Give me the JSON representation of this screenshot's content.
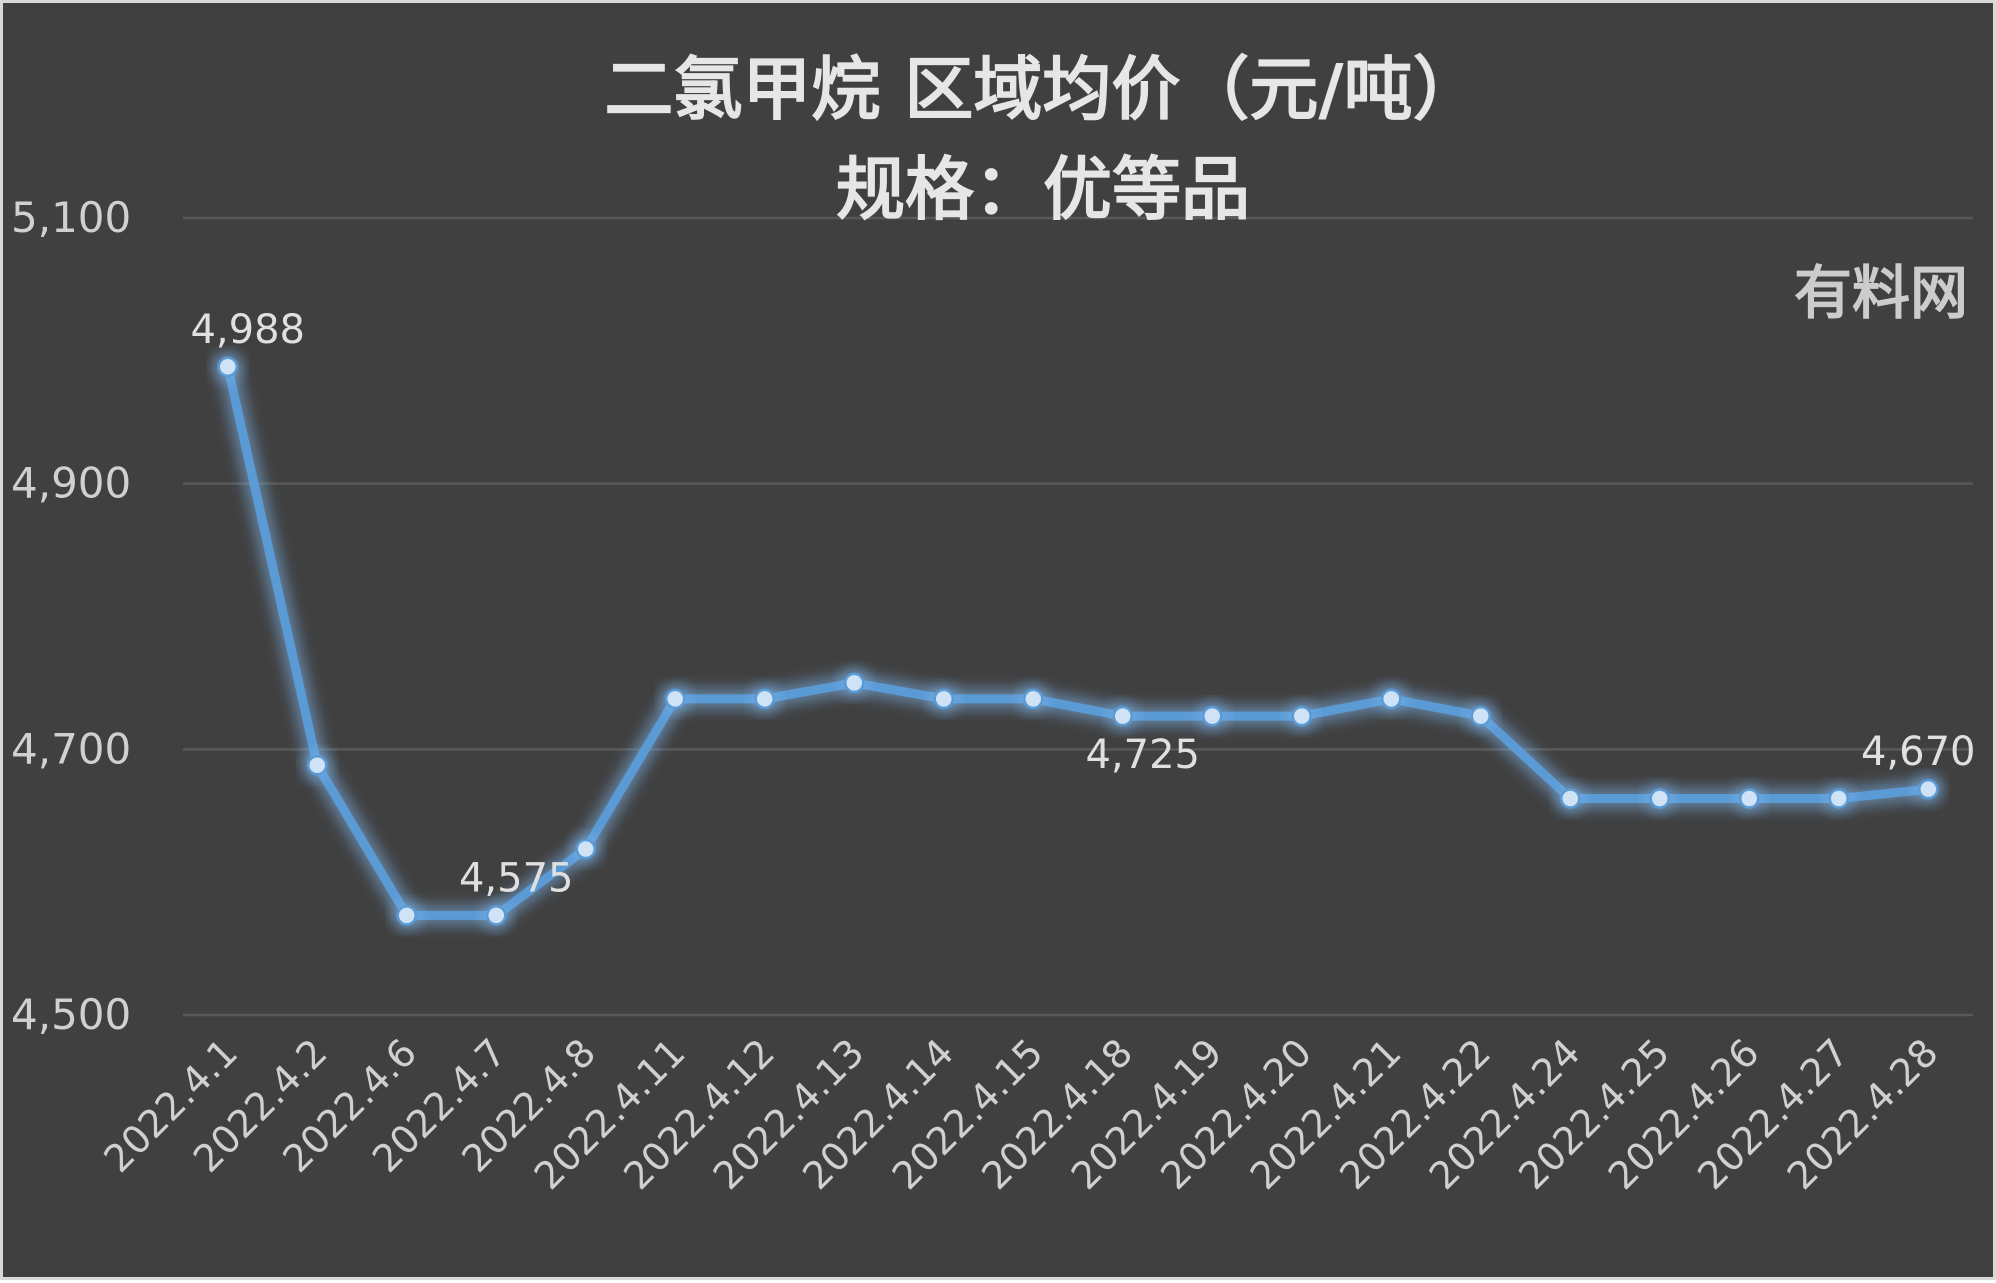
{
  "chart_data": {
    "type": "line",
    "title": "二氯甲烷  区域均价（元/吨）",
    "subtitle": "规格：优等品",
    "watermark": "有料网",
    "xlabel": "",
    "ylabel": "",
    "ylim": [
      4500,
      5100
    ],
    "yticks": [
      4500,
      4700,
      4900,
      5100
    ],
    "ytick_labels": [
      "4,500",
      "4,700",
      "4,900",
      "5,100"
    ],
    "categories": [
      "2022.4.1",
      "2022.4.2",
      "2022.4.6",
      "2022.4.7",
      "2022.4.8",
      "2022.4.11",
      "2022.4.12",
      "2022.4.13",
      "2022.4.14",
      "2022.4.15",
      "2022.4.18",
      "2022.4.19",
      "2022.4.20",
      "2022.4.21",
      "2022.4.22",
      "2022.4.24",
      "2022.4.25",
      "2022.4.26",
      "2022.4.27",
      "2022.4.28"
    ],
    "series": [
      {
        "values": [
          4988,
          4688,
          4575,
          4575,
          4625,
          4738,
          4738,
          4750,
          4738,
          4738,
          4725,
          4725,
          4725,
          4738,
          4725,
          4663,
          4663,
          4663,
          4663,
          4670
        ]
      }
    ],
    "data_labels": [
      {
        "index": 0,
        "text": "4,988"
      },
      {
        "index": 3,
        "text": "4,575"
      },
      {
        "index": 10,
        "text": "4,725"
      },
      {
        "index": 19,
        "text": "4,670"
      }
    ],
    "grid": true,
    "colors": {
      "background": "#404040",
      "line": "#5b9bd5",
      "glow": "#7fb8f0",
      "marker": "#cfe2f6",
      "grid": "#595959",
      "text": "#d0d0d0",
      "border": "#d9d9d9"
    }
  }
}
